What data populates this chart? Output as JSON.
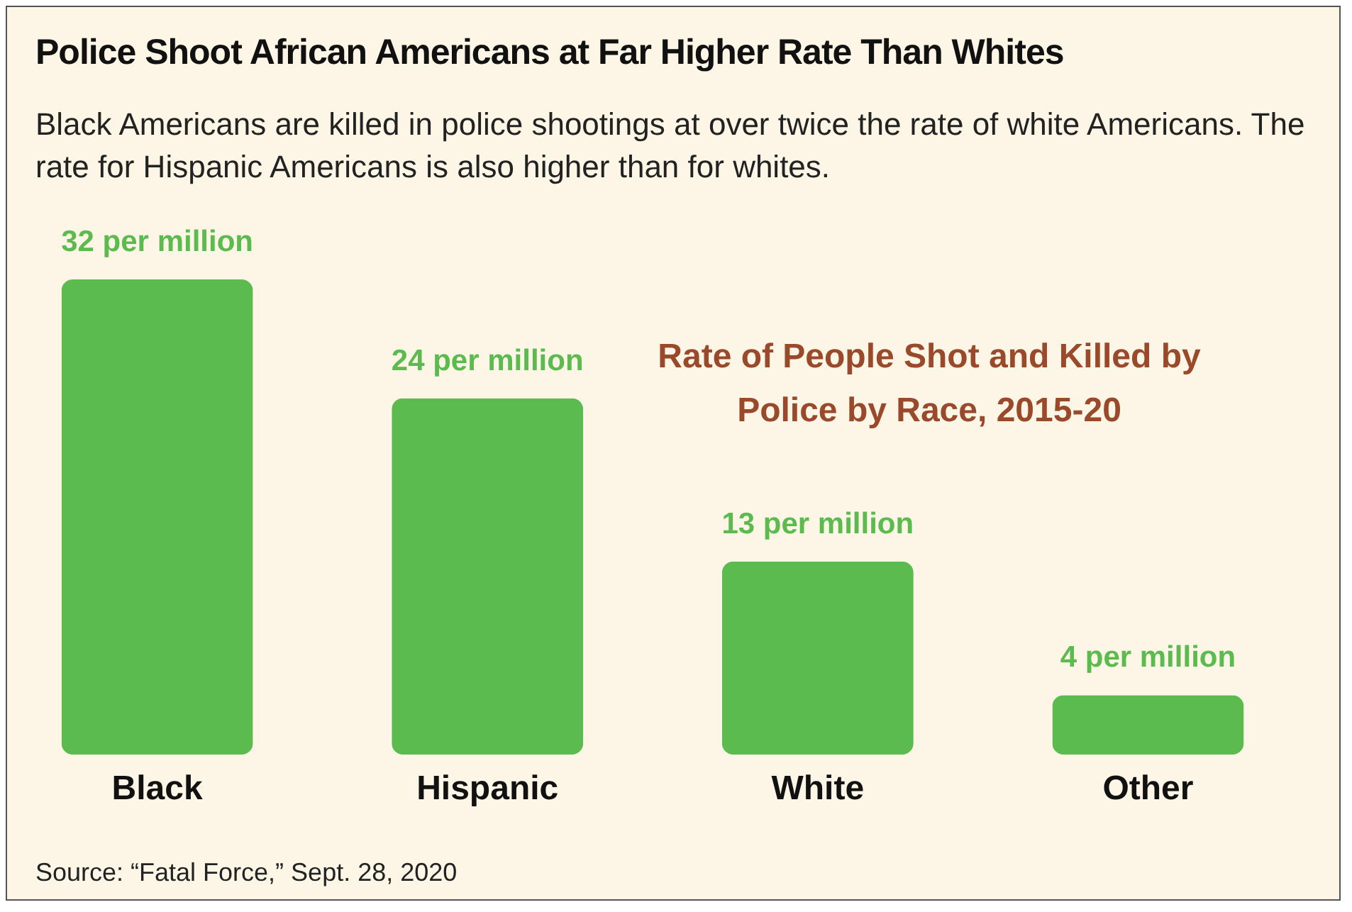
{
  "chart_data": {
    "type": "bar",
    "title": "Police Shoot African Americans at Far Higher Rate Than Whites",
    "subtitle": "Black Americans are killed in police shootings at over twice the rate of white Americans. The rate for Hispanic Americans is also higher than for whites.",
    "categories": [
      "Black",
      "Hispanic",
      "White",
      "Other"
    ],
    "values": [
      32,
      24,
      13,
      4
    ],
    "value_labels": [
      "32 per million",
      "24 per million",
      "13 per million",
      "4 per million"
    ],
    "color": "#5cbb4f",
    "annotations": [
      "Rate of People Shot and Killed by Police by Race, 2015-20",
      "Source: “Fatal Force,” Sept. 28, 2020"
    ]
  }
}
